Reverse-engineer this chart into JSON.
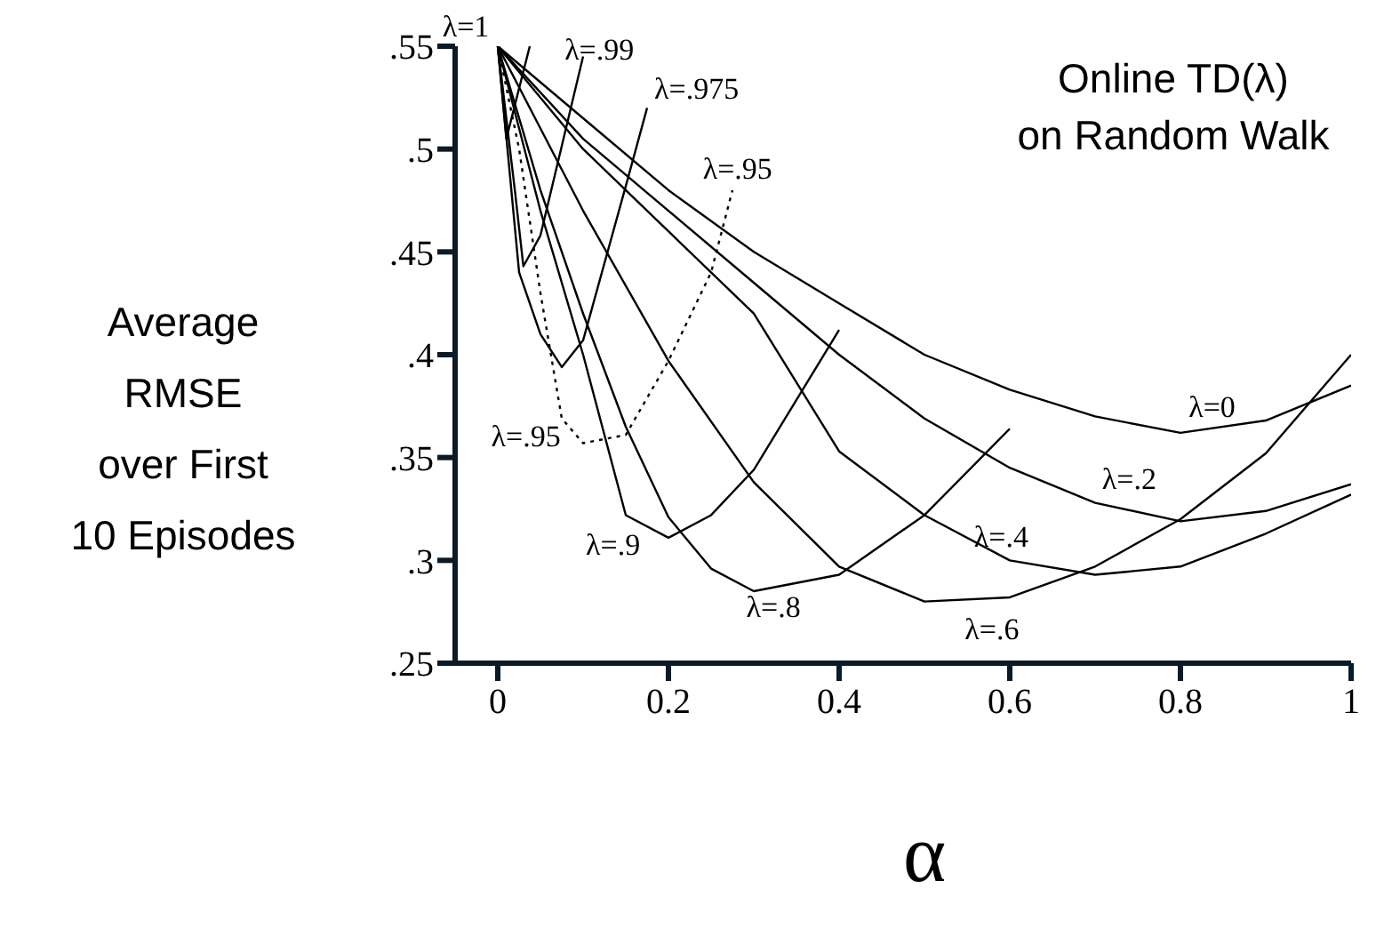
{
  "chart_data": {
    "type": "line",
    "title": "Online TD(λ)\non Random Walk",
    "xlabel": "α",
    "ylabel": "Average\nRMSE\nover First\n10 Episodes",
    "xlim": [
      -0.05,
      1
    ],
    "xticks": [
      0,
      {
        "value": 0.2,
        "label": "0.2"
      },
      {
        "value": 0.4,
        "label": "0.4"
      },
      {
        "value": 0.6,
        "label": "0.6"
      },
      {
        "value": 0.8,
        "label": "0.8"
      },
      1
    ],
    "ylim": [
      0.25,
      0.55
    ],
    "yticks": [
      {
        "value": 0.25,
        "label": ".25"
      },
      {
        "value": 0.3,
        "label": ".3"
      },
      {
        "value": 0.35,
        "label": ".35"
      },
      {
        "value": 0.4,
        "label": ".4"
      },
      {
        "value": 0.45,
        "label": ".45"
      },
      {
        "value": 0.5,
        "label": ".5"
      },
      {
        "value": 0.55,
        "label": ".55"
      }
    ],
    "grid": false,
    "legend": false,
    "marker": "none",
    "line_style": "solid",
    "series": [
      {
        "name": "λ=0",
        "color": "#000000",
        "x": [
          0,
          0.1,
          0.2,
          0.3,
          0.4,
          0.5,
          0.6,
          0.7,
          0.8,
          0.9,
          1
        ],
        "values": [
          0.55,
          0.515,
          0.48,
          0.45,
          0.425,
          0.4,
          0.383,
          0.37,
          0.362,
          0.368,
          0.385
        ]
      },
      {
        "name": "λ=.2",
        "color": "#000000",
        "x": [
          0,
          0.1,
          0.2,
          0.3,
          0.4,
          0.5,
          0.6,
          0.7,
          0.8,
          0.9,
          1
        ],
        "values": [
          0.55,
          0.505,
          0.47,
          0.435,
          0.4,
          0.369,
          0.345,
          0.328,
          0.319,
          0.324,
          0.337
        ]
      },
      {
        "name": "λ=.4",
        "color": "#000000",
        "x": [
          0,
          0.1,
          0.2,
          0.3,
          0.4,
          0.5,
          0.6,
          0.7,
          0.8,
          0.9,
          1
        ],
        "values": [
          0.55,
          0.5,
          0.46,
          0.42,
          0.353,
          0.322,
          0.3,
          0.293,
          0.297,
          0.313,
          0.332
        ]
      },
      {
        "name": "λ=.6",
        "color": "#000000",
        "x": [
          0,
          0.1,
          0.2,
          0.3,
          0.4,
          0.5,
          0.6,
          0.7,
          0.8,
          0.9,
          1
        ],
        "values": [
          0.55,
          0.47,
          0.397,
          0.338,
          0.297,
          0.28,
          0.282,
          0.297,
          0.32,
          0.352,
          0.4
        ]
      },
      {
        "name": "λ=.8",
        "color": "#000000",
        "x": [
          0,
          0.05,
          0.1,
          0.15,
          0.2,
          0.25,
          0.3,
          0.4,
          0.5,
          0.6
        ],
        "values": [
          0.55,
          0.48,
          0.42,
          0.365,
          0.321,
          0.296,
          0.285,
          0.293,
          0.322,
          0.364
        ]
      },
      {
        "name": "λ=.9",
        "color": "#000000",
        "x": [
          0,
          0.05,
          0.1,
          0.15,
          0.2,
          0.25,
          0.3,
          0.4
        ],
        "values": [
          0.55,
          0.47,
          0.4,
          0.322,
          0.311,
          0.322,
          0.344,
          0.412
        ]
      },
      {
        "name": "λ=.95",
        "color": "#000000",
        "line_style": "dotted",
        "x": [
          0,
          0.025,
          0.05,
          0.075,
          0.1,
          0.15,
          0.2,
          0.25,
          0.275
        ],
        "values": [
          0.55,
          0.5,
          0.43,
          0.369,
          0.357,
          0.361,
          0.397,
          0.44,
          0.48
        ]
      },
      {
        "name": "λ=.975",
        "color": "#000000",
        "x": [
          0,
          0.025,
          0.05,
          0.075,
          0.1,
          0.15,
          0.175
        ],
        "values": [
          0.55,
          0.44,
          0.41,
          0.394,
          0.407,
          0.482,
          0.52
        ]
      },
      {
        "name": "λ=.99",
        "color": "#000000",
        "x": [
          0,
          0.02,
          0.03,
          0.05,
          0.1
        ],
        "values": [
          0.55,
          0.48,
          0.443,
          0.458,
          0.545
        ]
      },
      {
        "name": "λ=1",
        "color": "#000000",
        "x": [
          0,
          0.01,
          0.0375
        ],
        "values": [
          0.55,
          0.505,
          0.55
        ]
      }
    ]
  }
}
